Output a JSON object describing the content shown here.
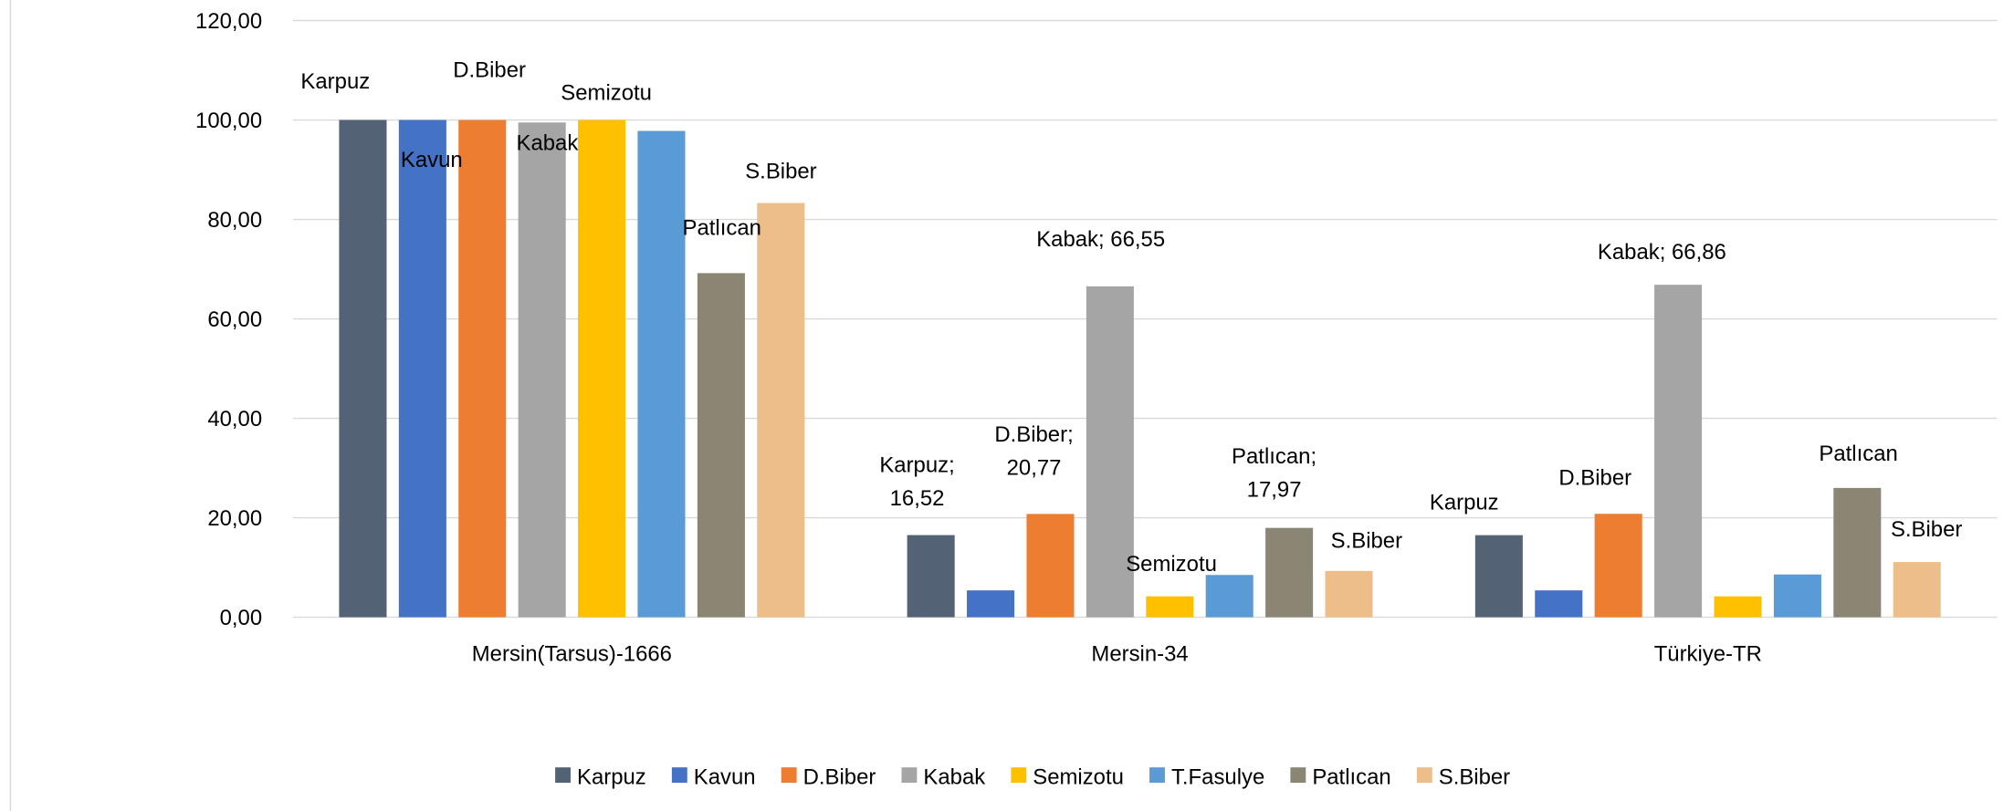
{
  "chart_data": {
    "type": "bar",
    "categories": [
      "Mersin(Tarsus)-1666",
      "Mersin-34",
      "Türkiye-TR"
    ],
    "ylim": [
      0,
      120
    ],
    "yticks": [
      {
        "value": 0,
        "label": "0,00"
      },
      {
        "value": 20,
        "label": "20,00"
      },
      {
        "value": 40,
        "label": "40,00"
      },
      {
        "value": 60,
        "label": "60,00"
      },
      {
        "value": 80,
        "label": "80,00"
      },
      {
        "value": 100,
        "label": "100,00"
      },
      {
        "value": 120,
        "label": "120,00"
      }
    ],
    "grid": true,
    "legend": "bottom",
    "series": [
      {
        "name": "Karpuz",
        "color": "#536275",
        "values": [
          100,
          16.52,
          16.5
        ],
        "data_labels": [
          "Karpuz",
          "Karpuz; 16,52",
          "Karpuz"
        ]
      },
      {
        "name": "Kavun",
        "color": "#4472c4",
        "values": [
          100,
          5.4,
          5.4
        ],
        "data_labels": [
          "Kavun",
          null,
          null
        ]
      },
      {
        "name": "D.Biber",
        "color": "#ed7d31",
        "values": [
          100,
          20.77,
          20.8
        ],
        "data_labels": [
          "D.Biber",
          "D.Biber; 20,77",
          "D.Biber"
        ]
      },
      {
        "name": "Kabak",
        "color": "#a5a5a5",
        "values": [
          99.5,
          66.55,
          66.86
        ],
        "data_labels": [
          "Kabak",
          "Kabak; 66,55",
          "Kabak; 66,86"
        ]
      },
      {
        "name": "Semizotu",
        "color": "#ffc000",
        "values": [
          100,
          4.2,
          4.2
        ],
        "data_labels": [
          "Semizotu",
          "Semizotu",
          null
        ]
      },
      {
        "name": "T.Fasulye",
        "color": "#5b9bd5",
        "values": [
          97.8,
          8.5,
          8.6
        ],
        "data_labels": [
          null,
          null,
          null
        ]
      },
      {
        "name": "Patlıcan",
        "color": "#8b8574",
        "values": [
          69.2,
          17.97,
          26.0
        ],
        "data_labels": [
          "Patlıcan",
          "Patlıcan; 17,97",
          "Patlıcan"
        ]
      },
      {
        "name": "S.Biber",
        "color": "#edbd8a",
        "values": [
          83.3,
          9.3,
          11.1
        ],
        "data_labels": [
          "S.Biber",
          "S.Biber",
          "S.Biber"
        ]
      }
    ]
  }
}
